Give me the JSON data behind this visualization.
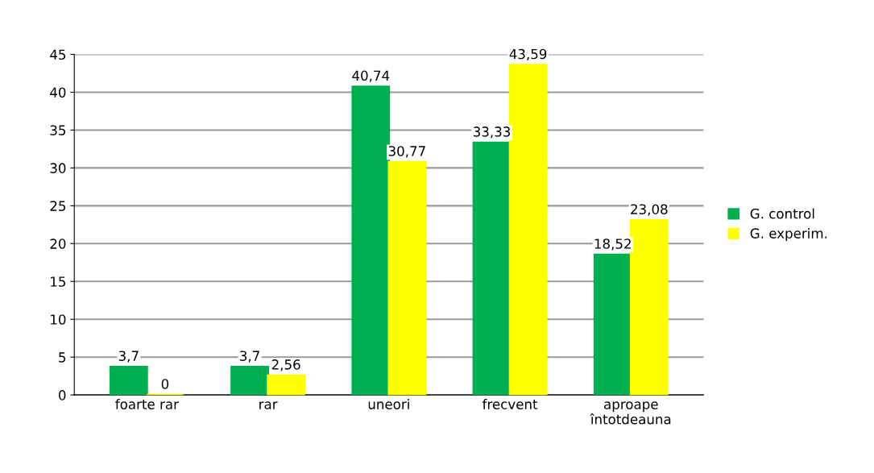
{
  "chart_data": {
    "type": "bar",
    "categories": [
      "foarte rar",
      "rar",
      "uneori",
      "frecvent",
      "aproape\nîntotdeauna"
    ],
    "series": [
      {
        "name": "G. control",
        "color": "#00b050",
        "values": [
          3.7,
          3.7,
          40.74,
          33.33,
          18.52
        ],
        "value_labels": [
          "3,7",
          "3,7",
          "40,74",
          "33,33",
          "18,52"
        ]
      },
      {
        "name": "G. experim.",
        "color": "#ffff00",
        "values": [
          0,
          2.56,
          30.77,
          43.59,
          23.08
        ],
        "value_labels": [
          "0",
          "2,56",
          "30,77",
          "43,59",
          "23,08"
        ]
      }
    ],
    "ylim": [
      0,
      45
    ],
    "yticks": [
      0,
      5,
      10,
      15,
      20,
      25,
      30,
      35,
      40,
      45
    ],
    "grid": "y",
    "legend": "right"
  }
}
